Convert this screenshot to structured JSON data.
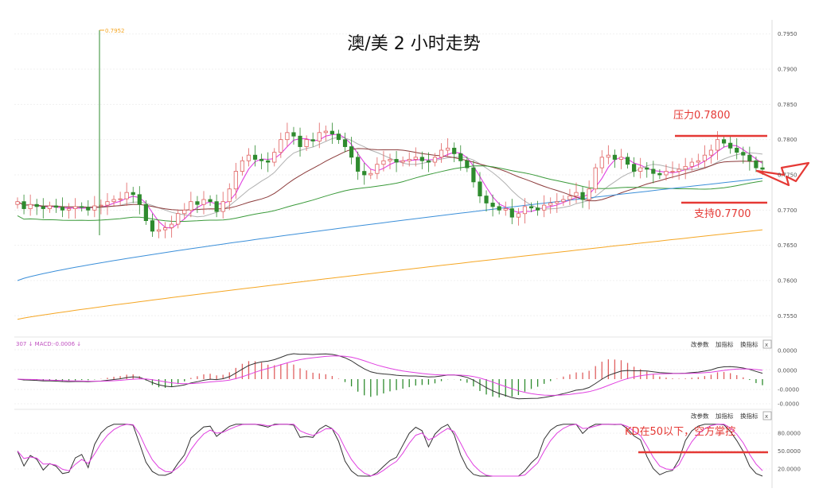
{
  "title": "澳/美 2 小时走势",
  "annotations": {
    "resistance": "压力0.7800",
    "support": "支持0.7700",
    "kd_note": "KD在50以下，空方掌控",
    "high_marker": "0.7952"
  },
  "main_axis": {
    "ticks": [
      "0.7950",
      "0.7900",
      "0.7850",
      "0.7800",
      "0.7750",
      "0.7700",
      "0.7650",
      "0.7600",
      "0.7550"
    ]
  },
  "macd_panel": {
    "legend": "307 ↓ MACD:-0.0006 ↓",
    "toolbar": [
      "改参数",
      "加指标",
      "换指标"
    ],
    "close_label": "x",
    "ticks": [
      "0.0000",
      "0.0000",
      "-0.0000",
      "-0.0000"
    ]
  },
  "kd_panel": {
    "toolbar": [
      "改参数",
      "加指标",
      "换指标"
    ],
    "close_label": "x",
    "ticks": [
      "80.0000",
      "50.0000",
      "20.0000"
    ]
  },
  "colors": {
    "up": "#e06060",
    "down": "#2e8b2e",
    "ma_fast": "#e040e0",
    "ma_mid": "#b0b0b0",
    "ma_slow": "#8b3a3a",
    "ma_green": "#3a9a3a",
    "ma_blue": "#3b8fd9",
    "ma_orange": "#f5a623",
    "red": "#e53935"
  },
  "chart_data": [
    {
      "type": "candlestick",
      "title": "澳/美 2 小时走势",
      "ylim": [
        0.753,
        0.797
      ],
      "resistance": 0.78,
      "support": 0.77,
      "closes": [
        0.7712,
        0.7702,
        0.7708,
        0.7705,
        0.7702,
        0.7706,
        0.7704,
        0.77,
        0.7702,
        0.7705,
        0.7704,
        0.77,
        0.7706,
        0.7707,
        0.7712,
        0.7715,
        0.7716,
        0.7725,
        0.7722,
        0.7708,
        0.7685,
        0.767,
        0.7672,
        0.7675,
        0.768,
        0.7695,
        0.77,
        0.7712,
        0.7708,
        0.7715,
        0.7712,
        0.7698,
        0.7712,
        0.773,
        0.7755,
        0.777,
        0.7778,
        0.7772,
        0.777,
        0.7768,
        0.7782,
        0.78,
        0.781,
        0.7805,
        0.779,
        0.78,
        0.7798,
        0.781,
        0.7812,
        0.7808,
        0.78,
        0.779,
        0.7775,
        0.7755,
        0.775,
        0.7752,
        0.7765,
        0.777,
        0.7772,
        0.7768,
        0.777,
        0.7772,
        0.7775,
        0.777,
        0.7768,
        0.7775,
        0.7785,
        0.7788,
        0.778,
        0.777,
        0.776,
        0.774,
        0.772,
        0.771,
        0.7705,
        0.77,
        0.7702,
        0.769,
        0.7695,
        0.7705,
        0.7703,
        0.77,
        0.7707,
        0.771,
        0.7712,
        0.7715,
        0.772,
        0.7725,
        0.7715,
        0.773,
        0.776,
        0.7775,
        0.7778,
        0.7772,
        0.7775,
        0.7765,
        0.7755,
        0.776,
        0.7758,
        0.7752,
        0.775,
        0.7755,
        0.7755,
        0.7758,
        0.7762,
        0.7768,
        0.777,
        0.7778,
        0.7785,
        0.78,
        0.7795,
        0.7788,
        0.7782,
        0.7778,
        0.777,
        0.776,
        0.7758
      ],
      "macd_hist_range": [
        -0.0006,
        0.0006
      ],
      "kd_levels": [
        20,
        50,
        80
      ]
    }
  ]
}
